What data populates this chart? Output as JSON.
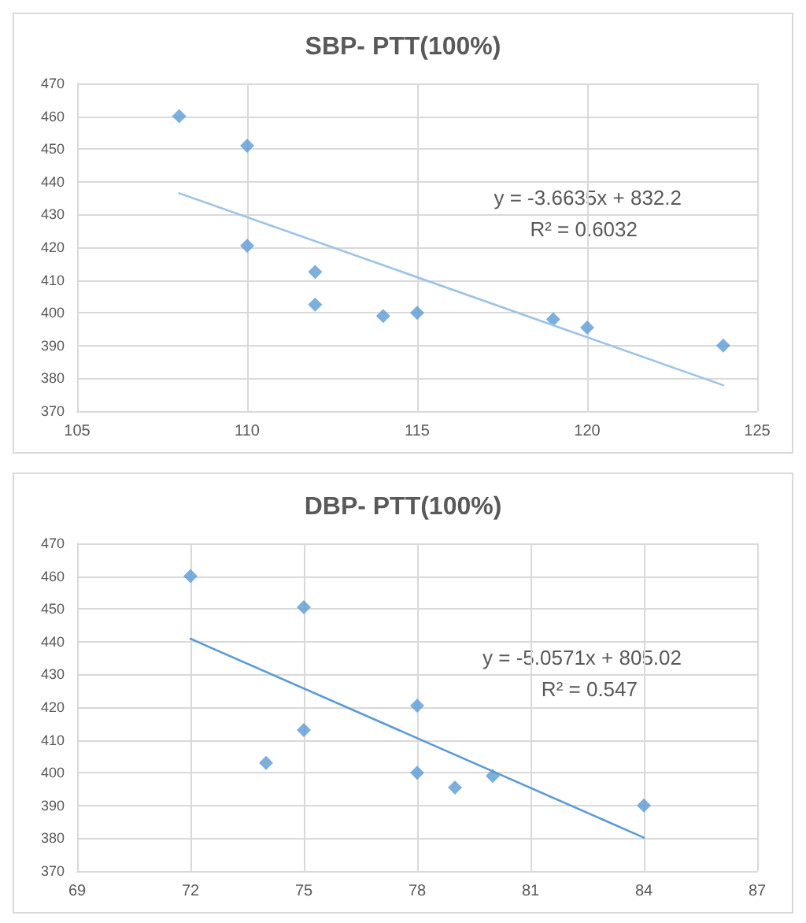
{
  "chart_data": [
    {
      "type": "scatter",
      "title": "SBP- PTT(100%)",
      "xlim": [
        105,
        125
      ],
      "xticks": [
        105,
        110,
        115,
        120,
        125
      ],
      "ylim": [
        370,
        470
      ],
      "yticks": [
        370,
        380,
        390,
        400,
        410,
        420,
        430,
        440,
        450,
        460,
        470
      ],
      "grid": true,
      "marker": "diamond",
      "annotations": [
        "y = -3.6635x + 832.2",
        "R² = 0.6032"
      ],
      "series": [
        {
          "color": "#5b9bd5",
          "x": [
            108,
            110,
            110,
            112,
            112,
            114,
            115,
            119,
            120,
            124
          ],
          "values": [
            460,
            451,
            420.5,
            412.5,
            402.5,
            399,
            400,
            398,
            395.5,
            390
          ]
        },
        {
          "type": "line",
          "color": "#9dc3e6",
          "line_style": "solid",
          "marker": "none",
          "x": [
            108,
            124
          ],
          "values": [
            436.5,
            377.9
          ]
        }
      ]
    },
    {
      "type": "scatter",
      "title": "DBP- PTT(100%)",
      "xlim": [
        69,
        87
      ],
      "xticks": [
        69,
        72,
        75,
        78,
        81,
        84,
        87
      ],
      "ylim": [
        370,
        470
      ],
      "yticks": [
        370,
        380,
        390,
        400,
        410,
        420,
        430,
        440,
        450,
        460,
        470
      ],
      "grid": true,
      "marker": "diamond",
      "annotations": [
        "y = -5.0571x + 805.02",
        "R² = 0.547"
      ],
      "series": [
        {
          "color": "#5b9bd5",
          "x": [
            72,
            75,
            75,
            74,
            78,
            78,
            79,
            80,
            84
          ],
          "values": [
            460,
            450.5,
            413,
            403,
            420.5,
            400,
            395.5,
            399,
            390
          ]
        },
        {
          "type": "line",
          "color": "#5b9bd5",
          "line_style": "solid",
          "marker": "none",
          "x": [
            72,
            84
          ],
          "values": [
            440.9,
            380.2
          ]
        }
      ]
    }
  ]
}
